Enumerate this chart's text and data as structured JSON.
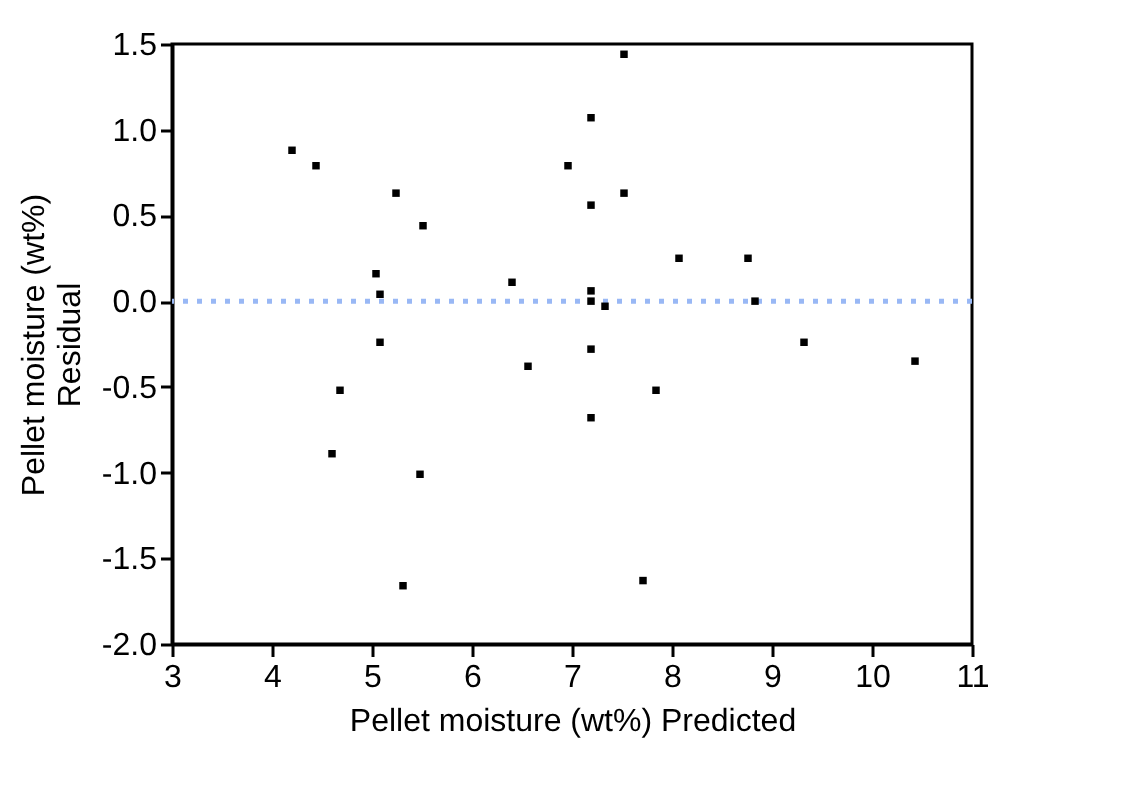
{
  "chart_data": {
    "type": "scatter",
    "xlabel": "Pellet moisture (wt%) Predicted",
    "ylabel": "Pellet moisture (wt%)\nResidual",
    "x": [
      4.2,
      4.44,
      5.24,
      5.51,
      5.04,
      5.08,
      6.4,
      5.08,
      6.56,
      4.68,
      4.6,
      5.48,
      5.31,
      6.96,
      7.52,
      7.19,
      7.19,
      7.52,
      8.07,
      8.76,
      7.19,
      7.19,
      7.33,
      8.83,
      7.19,
      9.32,
      10.43,
      7.84,
      7.19,
      7.71
    ],
    "series": [
      {
        "color": "#000000",
        "values": [
          0.88,
          0.79,
          0.63,
          0.44,
          0.16,
          0.04,
          0.11,
          -0.24,
          -0.38,
          -0.52,
          -0.89,
          -1.01,
          -1.66,
          0.79,
          1.44,
          1.07,
          0.56,
          0.63,
          0.25,
          0.25,
          0.06,
          0.0,
          -0.03,
          0.0,
          -0.28,
          -0.24,
          -0.35,
          -0.52,
          -0.68,
          -1.63
        ]
      }
    ],
    "xlim": [
      3,
      11
    ],
    "xticks": [
      3,
      4,
      5,
      6,
      7,
      8,
      9,
      10,
      11
    ],
    "ylim": [
      -2.0,
      1.5
    ],
    "yticks": [
      {
        "value": -2.0,
        "label": "-2.0"
      },
      {
        "value": -1.5,
        "label": "-1.5"
      },
      {
        "value": -1.0,
        "label": "-1.0"
      },
      {
        "value": -0.5,
        "label": "-0.5"
      },
      {
        "value": 0.0,
        "label": "0.0"
      },
      {
        "value": 0.5,
        "label": "0.5"
      },
      {
        "value": 1.0,
        "label": "1.0"
      },
      {
        "value": 1.5,
        "label": "1.5"
      }
    ],
    "ref_lines": [
      {
        "axis": "y",
        "value": 0,
        "color": "#99b8f5",
        "line_style": "dotted"
      }
    ],
    "marker": "square",
    "grid": false
  }
}
